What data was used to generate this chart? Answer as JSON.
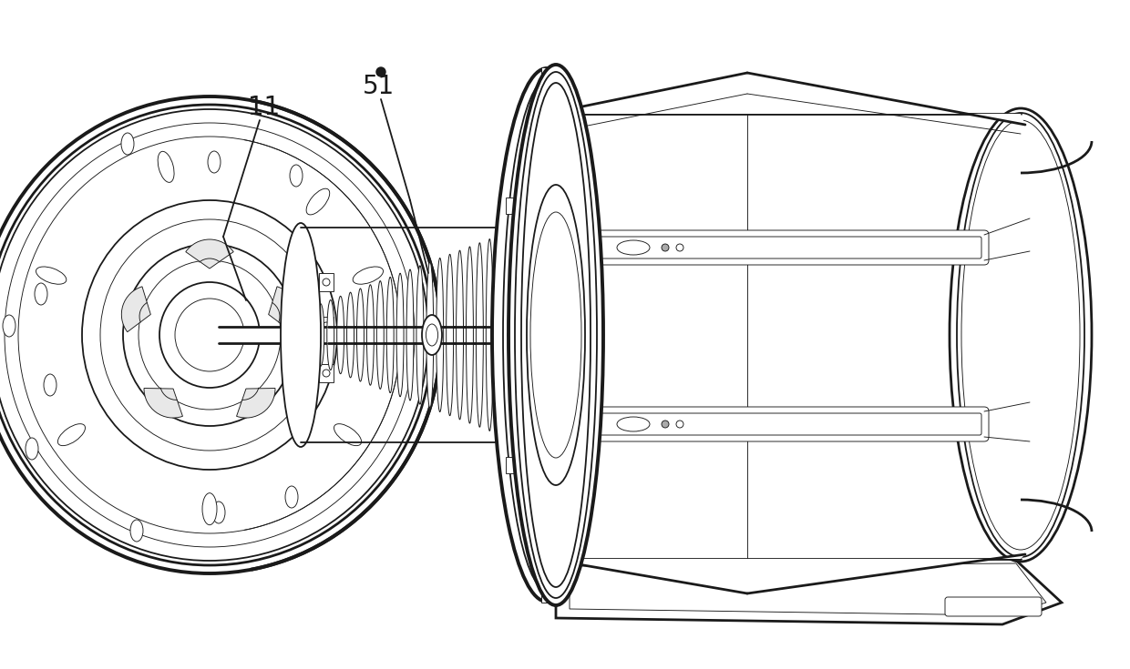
{
  "background_color": "#ffffff",
  "line_color": "#1a1a1a",
  "label_11": "11",
  "label_51": "51",
  "figsize": [
    12.4,
    7.35
  ],
  "dpi": 100,
  "lw_main": 1.3,
  "lw_thick": 2.0,
  "lw_thin": 0.65,
  "lw_extra_thick": 2.8
}
